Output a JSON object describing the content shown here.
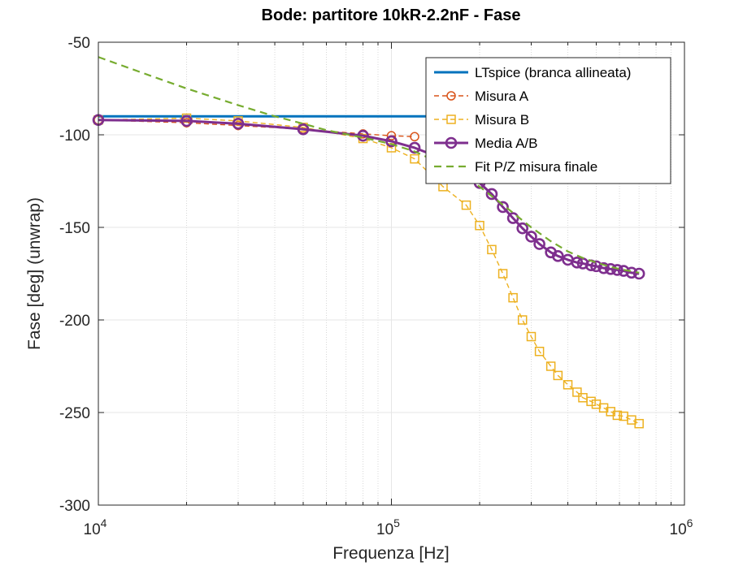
{
  "chart_data": {
    "type": "line",
    "title": "Bode: partitore 10kR-2.2nF - Fase",
    "xlabel": "Frequenza [Hz]",
    "ylabel": "Fase [deg] (unwrap)",
    "xscale": "log",
    "xlim": [
      10000,
      1000000
    ],
    "ylim": [
      -300,
      -50
    ],
    "xtick_labels": [
      {
        "value": 10000,
        "base": "10",
        "exp": "4"
      },
      {
        "value": 100000,
        "base": "10",
        "exp": "5"
      },
      {
        "value": 1000000,
        "base": "10",
        "exp": "6"
      }
    ],
    "yticks": [
      -50,
      -100,
      -150,
      -200,
      -250,
      -300
    ],
    "ytick_labels": [
      "-50",
      "-100",
      "-150",
      "-200",
      "-250",
      "-300"
    ],
    "grid": true,
    "legend_position": "top-right",
    "series": [
      {
        "name": "LTspice (branca allineata)",
        "color": "#0072BD",
        "style": "solid",
        "marker": "none",
        "x": [
          10000,
          20000,
          50000,
          100000,
          200000,
          500000,
          700000
        ],
        "y": [
          -90,
          -90,
          -90,
          -90,
          -90,
          -90,
          -90
        ]
      },
      {
        "name": "Misura A",
        "color": "#D95319",
        "style": "dashed",
        "marker": "circle",
        "x": [
          10000,
          20000,
          30000,
          50000,
          80000,
          100000,
          120000
        ],
        "y": [
          -92,
          -93.5,
          -95,
          -97,
          -99.5,
          -100.5,
          -101
        ]
      },
      {
        "name": "Misura B",
        "color": "#EDB120",
        "style": "dashed",
        "marker": "square",
        "x": [
          10000,
          20000,
          30000,
          50000,
          80000,
          100000,
          120000,
          150000,
          180000,
          200000,
          220000,
          240000,
          260000,
          280000,
          300000,
          320000,
          350000,
          370000,
          400000,
          430000,
          450000,
          480000,
          500000,
          530000,
          560000,
          590000,
          620000,
          660000,
          700000
        ],
        "y": [
          -92,
          -91,
          -92.5,
          -96,
          -102,
          -107,
          -113,
          -128,
          -138,
          -149,
          -162,
          -175,
          -188,
          -200,
          -209,
          -217,
          -225,
          -230,
          -235,
          -239,
          -242,
          -244,
          -245.5,
          -247.5,
          -249.5,
          -251.5,
          -252,
          -254,
          -256
        ]
      },
      {
        "name": "Media A/B",
        "color": "#7E2F8E",
        "style": "solid",
        "marker": "circle",
        "x": [
          10000,
          20000,
          30000,
          50000,
          80000,
          100000,
          120000,
          150000,
          180000,
          200000,
          220000,
          240000,
          260000,
          280000,
          300000,
          320000,
          350000,
          370000,
          400000,
          430000,
          450000,
          480000,
          500000,
          530000,
          560000,
          590000,
          620000,
          660000,
          700000
        ],
        "y": [
          -92,
          -92.5,
          -94,
          -97,
          -100.5,
          -103.5,
          -107,
          -113,
          -120,
          -126,
          -132,
          -139,
          -145,
          -150.5,
          -155,
          -159,
          -163.5,
          -165.5,
          -167.5,
          -169,
          -169.5,
          -170.5,
          -171,
          -172,
          -172.5,
          -173,
          -173.5,
          -174.5,
          -175
        ]
      },
      {
        "name": "Fit P/Z misura finale",
        "color": "#77AC30",
        "style": "dashed",
        "marker": "none",
        "x": [
          10000,
          15000,
          20000,
          30000,
          40000,
          50000,
          60000,
          80000,
          100000,
          120000,
          150000,
          180000,
          200000,
          250000,
          300000,
          350000,
          400000,
          450000,
          500000,
          550000,
          600000,
          650000,
          700000
        ],
        "y": [
          -58,
          -68,
          -75,
          -84,
          -90,
          -94,
          -97.5,
          -101.5,
          -105,
          -109,
          -116,
          -123,
          -128,
          -140,
          -150,
          -157.5,
          -163,
          -166.5,
          -169,
          -171,
          -172.5,
          -173.5,
          -174.5
        ]
      }
    ]
  }
}
